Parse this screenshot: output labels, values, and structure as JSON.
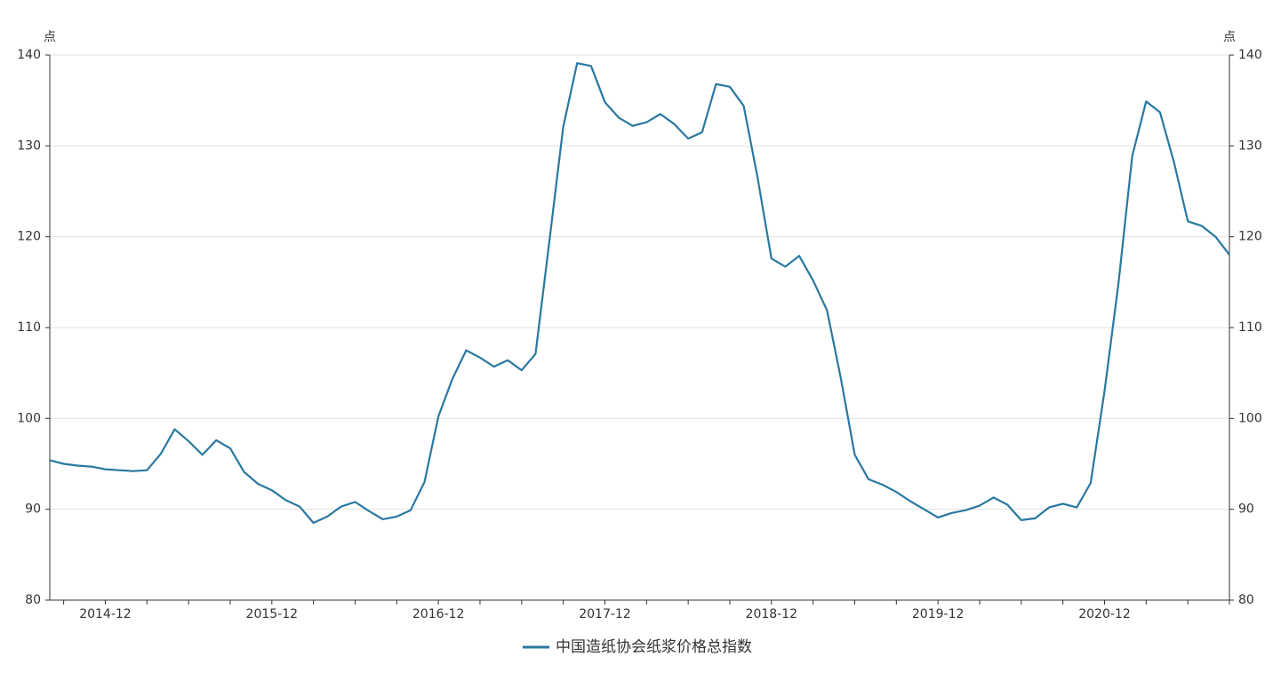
{
  "chart_data": {
    "type": "line",
    "y_unit": "点",
    "categories": [
      null,
      null,
      null,
      null,
      "2014-12",
      null,
      null,
      null,
      null,
      null,
      null,
      null,
      null,
      null,
      null,
      null,
      "2015-12",
      null,
      null,
      null,
      null,
      null,
      null,
      null,
      null,
      null,
      null,
      null,
      "2016-12",
      null,
      null,
      null,
      null,
      null,
      null,
      null,
      null,
      null,
      null,
      null,
      "2017-12",
      null,
      null,
      null,
      null,
      null,
      null,
      null,
      null,
      null,
      null,
      null,
      "2018-12",
      null,
      null,
      null,
      null,
      null,
      null,
      null,
      null,
      null,
      null,
      null,
      "2019-12",
      null,
      null,
      null,
      null,
      null,
      null,
      null,
      null,
      null,
      null,
      null,
      "2020-12",
      null,
      null,
      null,
      null,
      null,
      null,
      null,
      null,
      null
    ],
    "series": [
      {
        "name": "中国造纸协会纸浆价格总指数",
        "color": "#2a78a0",
        "values": [
          95.4,
          95.0,
          94.8,
          94.7,
          94.4,
          94.3,
          94.2,
          94.3,
          96.1,
          98.8,
          97.5,
          96.0,
          97.6,
          96.7,
          94.1,
          92.8,
          92.1,
          91.0,
          90.3,
          88.5,
          89.2,
          90.3,
          90.8,
          89.8,
          88.9,
          89.2,
          89.9,
          93.0,
          100.2,
          104.3,
          107.5,
          106.7,
          105.7,
          106.4,
          105.3,
          107.1,
          119.5,
          132.1,
          139.1,
          138.8,
          134.8,
          133.1,
          132.2,
          132.6,
          133.5,
          132.4,
          130.8,
          131.5,
          136.8,
          136.5,
          134.4,
          126.5,
          117.6,
          116.7,
          117.9,
          115.2,
          111.9,
          104.4,
          96.0,
          93.3,
          92.7,
          91.9,
          90.9,
          90.0,
          89.1,
          89.6,
          89.9,
          90.4,
          91.3,
          90.5,
          88.8,
          89.0,
          90.2,
          90.6,
          90.2,
          92.9,
          103.0,
          114.8,
          128.9,
          134.9,
          133.7,
          128.2,
          121.7,
          121.2,
          120.0,
          118.0
        ]
      }
    ],
    "ylim": [
      80,
      140
    ],
    "yticks": [
      80,
      90,
      100,
      110,
      120,
      130,
      140
    ],
    "grid": true,
    "legend": "bottom"
  }
}
